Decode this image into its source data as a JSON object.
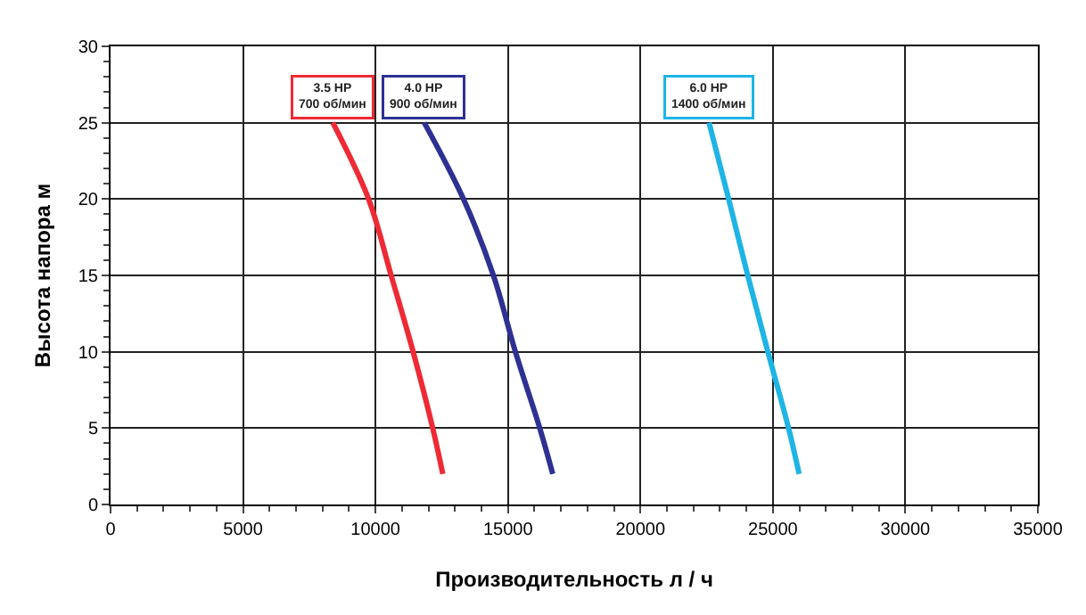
{
  "chart_data": {
    "type": "line",
    "xlabel": "Производительность л / ч",
    "ylabel": "Высота напора м",
    "xlim": [
      0,
      35000
    ],
    "xticks": [
      0,
      5000,
      10000,
      15000,
      20000,
      25000,
      30000,
      35000
    ],
    "ylim": [
      0,
      30
    ],
    "yticks": [
      0,
      5,
      10,
      15,
      20,
      25,
      30
    ],
    "grid": true,
    "legend": false,
    "marker": "none",
    "line_style": "solid",
    "series": [
      {
        "name": "3.5 HP\n700 об/мин",
        "color": "#ee2a35",
        "x": [
          8390,
          9740,
          10590,
          11420,
          12160,
          12540
        ],
        "values": [
          25,
          20,
          15,
          10,
          5,
          2
        ]
      },
      {
        "name": "4.0 HP\n900 об/мин",
        "color": "#2e3192",
        "x": [
          11840,
          13320,
          14450,
          15280,
          16200,
          16690
        ],
        "values": [
          25,
          20,
          15,
          10,
          5,
          2
        ]
      },
      {
        "name": "6.0 HP\n1400 об/мин",
        "color": "#1fb4e6",
        "x": [
          22590,
          23330,
          24050,
          24810,
          25590,
          25990
        ],
        "values": [
          25,
          20,
          15,
          10,
          5,
          2
        ]
      }
    ]
  }
}
